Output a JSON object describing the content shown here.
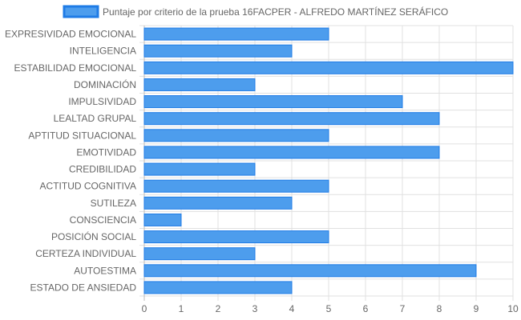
{
  "chart_data": {
    "type": "bar",
    "orientation": "horizontal",
    "categories": [
      "EXPRESIVIDAD EMOCIONAL",
      "INTELIGENCIA",
      "ESTABILIDAD EMOCIONAL",
      "DOMINACIÓN",
      "IMPULSIVIDAD",
      "LEALTAD GRUPAL",
      "APTITUD SITUACIONAL",
      "EMOTIVIDAD",
      "CREDIBILIDAD",
      "ACTITUD COGNITIVA",
      "SUTILEZA",
      "CONSCIENCIA",
      "POSICIÓN SOCIAL",
      "CERTEZA INDIVIDUAL",
      "AUTOESTIMA",
      "ESTADO DE ANSIEDAD"
    ],
    "series": [
      {
        "name": "Puntaje por criterio de la prueba 16FACPER - ALFREDO MARTÍNEZ SERÁFICO",
        "values": [
          5,
          4,
          10,
          3,
          7,
          8,
          5,
          8,
          3,
          5,
          4,
          1,
          5,
          3,
          9,
          4
        ]
      }
    ],
    "xlim": [
      0,
      10
    ],
    "xticks": [
      "0",
      "1",
      "2",
      "3",
      "4",
      "5",
      "6",
      "7",
      "8",
      "9",
      "10"
    ],
    "grid": true,
    "legend_position": "top",
    "colors": {
      "bar_fill": "#4d9ded",
      "bar_stroke": "#1e7be6",
      "grid": "#e0e0e0",
      "text": "#666666"
    }
  }
}
